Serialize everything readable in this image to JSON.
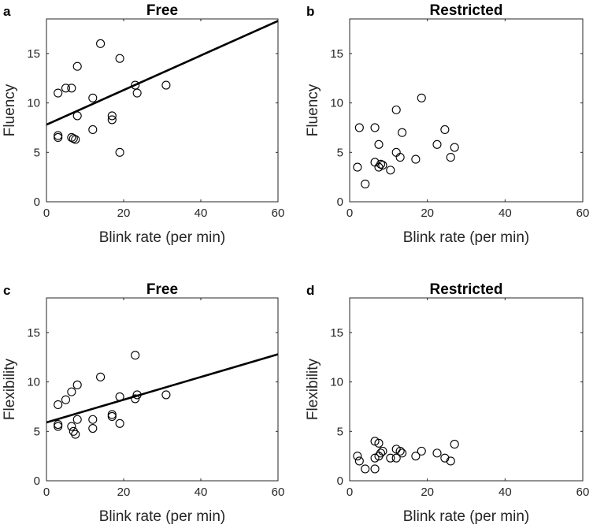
{
  "figure": {
    "description_labels": [
      "a",
      "b",
      "c",
      "d"
    ]
  },
  "chart_data": [
    {
      "type": "scatter",
      "panel_label": "a",
      "title": "Free",
      "xlabel": "Blink rate (per min)",
      "ylabel": "Fluency",
      "xlim": [
        0,
        60
      ],
      "ylim": [
        0,
        18.5
      ],
      "xticks": [
        0,
        20,
        40,
        60
      ],
      "yticks": [
        0,
        5,
        10,
        15
      ],
      "x": [
        3,
        3,
        3,
        5,
        6.5,
        6.5,
        7,
        7.5,
        8,
        8,
        12,
        12,
        14,
        17,
        17,
        19,
        19,
        23,
        23.5,
        31
      ],
      "y": [
        11,
        6.7,
        6.5,
        11.5,
        11.5,
        6.5,
        6.4,
        6.3,
        8.7,
        13.7,
        10.5,
        7.3,
        16,
        8.7,
        8.3,
        5,
        14.5,
        11.8,
        11,
        11.8
      ],
      "fit_line": {
        "x": [
          0,
          60
        ],
        "y": [
          7.8,
          18.3
        ]
      }
    },
    {
      "type": "scatter",
      "panel_label": "b",
      "title": "Restricted",
      "xlabel": "Blink rate (per min)",
      "ylabel": "Fluency",
      "xlim": [
        0,
        60
      ],
      "ylim": [
        0,
        18.5
      ],
      "xticks": [
        0,
        20,
        40,
        60
      ],
      "yticks": [
        0,
        5,
        10,
        15
      ],
      "x": [
        2,
        2.5,
        4,
        6.5,
        6.5,
        7.5,
        7.5,
        8,
        8.5,
        10.5,
        12,
        12,
        13,
        13.5,
        17,
        18.5,
        22.5,
        24.5,
        26,
        27
      ],
      "y": [
        3.5,
        7.5,
        1.8,
        4,
        7.5,
        5.8,
        3.5,
        3.8,
        3.7,
        3.2,
        9.3,
        5,
        4.5,
        7,
        4.3,
        10.5,
        5.8,
        7.3,
        4.5,
        5.5
      ]
    },
    {
      "type": "scatter",
      "panel_label": "c",
      "title": "Free",
      "xlabel": "Blink rate (per min)",
      "ylabel": "Flexibility",
      "xlim": [
        0,
        60
      ],
      "ylim": [
        0,
        18.5
      ],
      "xticks": [
        0,
        20,
        40,
        60
      ],
      "yticks": [
        0,
        5,
        10,
        15
      ],
      "x": [
        3,
        3,
        3,
        5,
        6.5,
        6.5,
        7,
        7.5,
        8,
        8,
        12,
        12,
        14,
        17,
        17,
        19,
        19,
        23,
        23.5,
        31
      ],
      "y": [
        7.7,
        5.7,
        5.5,
        8.2,
        9,
        5.5,
        5,
        4.7,
        6.2,
        9.7,
        6.2,
        5.3,
        10.5,
        6.7,
        6.5,
        5.8,
        8.5,
        8.3,
        8.7,
        8.7
      ],
      "extra_point": {
        "x": 23,
        "y": 12.7
      },
      "fit_line": {
        "x": [
          0,
          60
        ],
        "y": [
          5.9,
          12.8
        ]
      }
    },
    {
      "type": "scatter",
      "panel_label": "d",
      "title": "Restricted",
      "xlabel": "Blink rate (per min)",
      "ylabel": "Flexibility",
      "xlim": [
        0,
        60
      ],
      "ylim": [
        0,
        18.5
      ],
      "xticks": [
        0,
        20,
        40,
        60
      ],
      "yticks": [
        0,
        5,
        10,
        15
      ],
      "x": [
        2,
        2.5,
        4,
        6.5,
        6.5,
        6.5,
        7.5,
        7.5,
        8,
        8.5,
        10.5,
        12,
        12,
        13,
        13.5,
        17,
        18.5,
        22.5,
        24.5,
        26,
        27
      ],
      "y": [
        2.5,
        2,
        1.2,
        4,
        2.3,
        1.2,
        3.8,
        2.5,
        2.8,
        3,
        2.3,
        3.2,
        2.3,
        3,
        2.8,
        2.5,
        3,
        2.8,
        2.3,
        2,
        3.7
      ]
    }
  ]
}
